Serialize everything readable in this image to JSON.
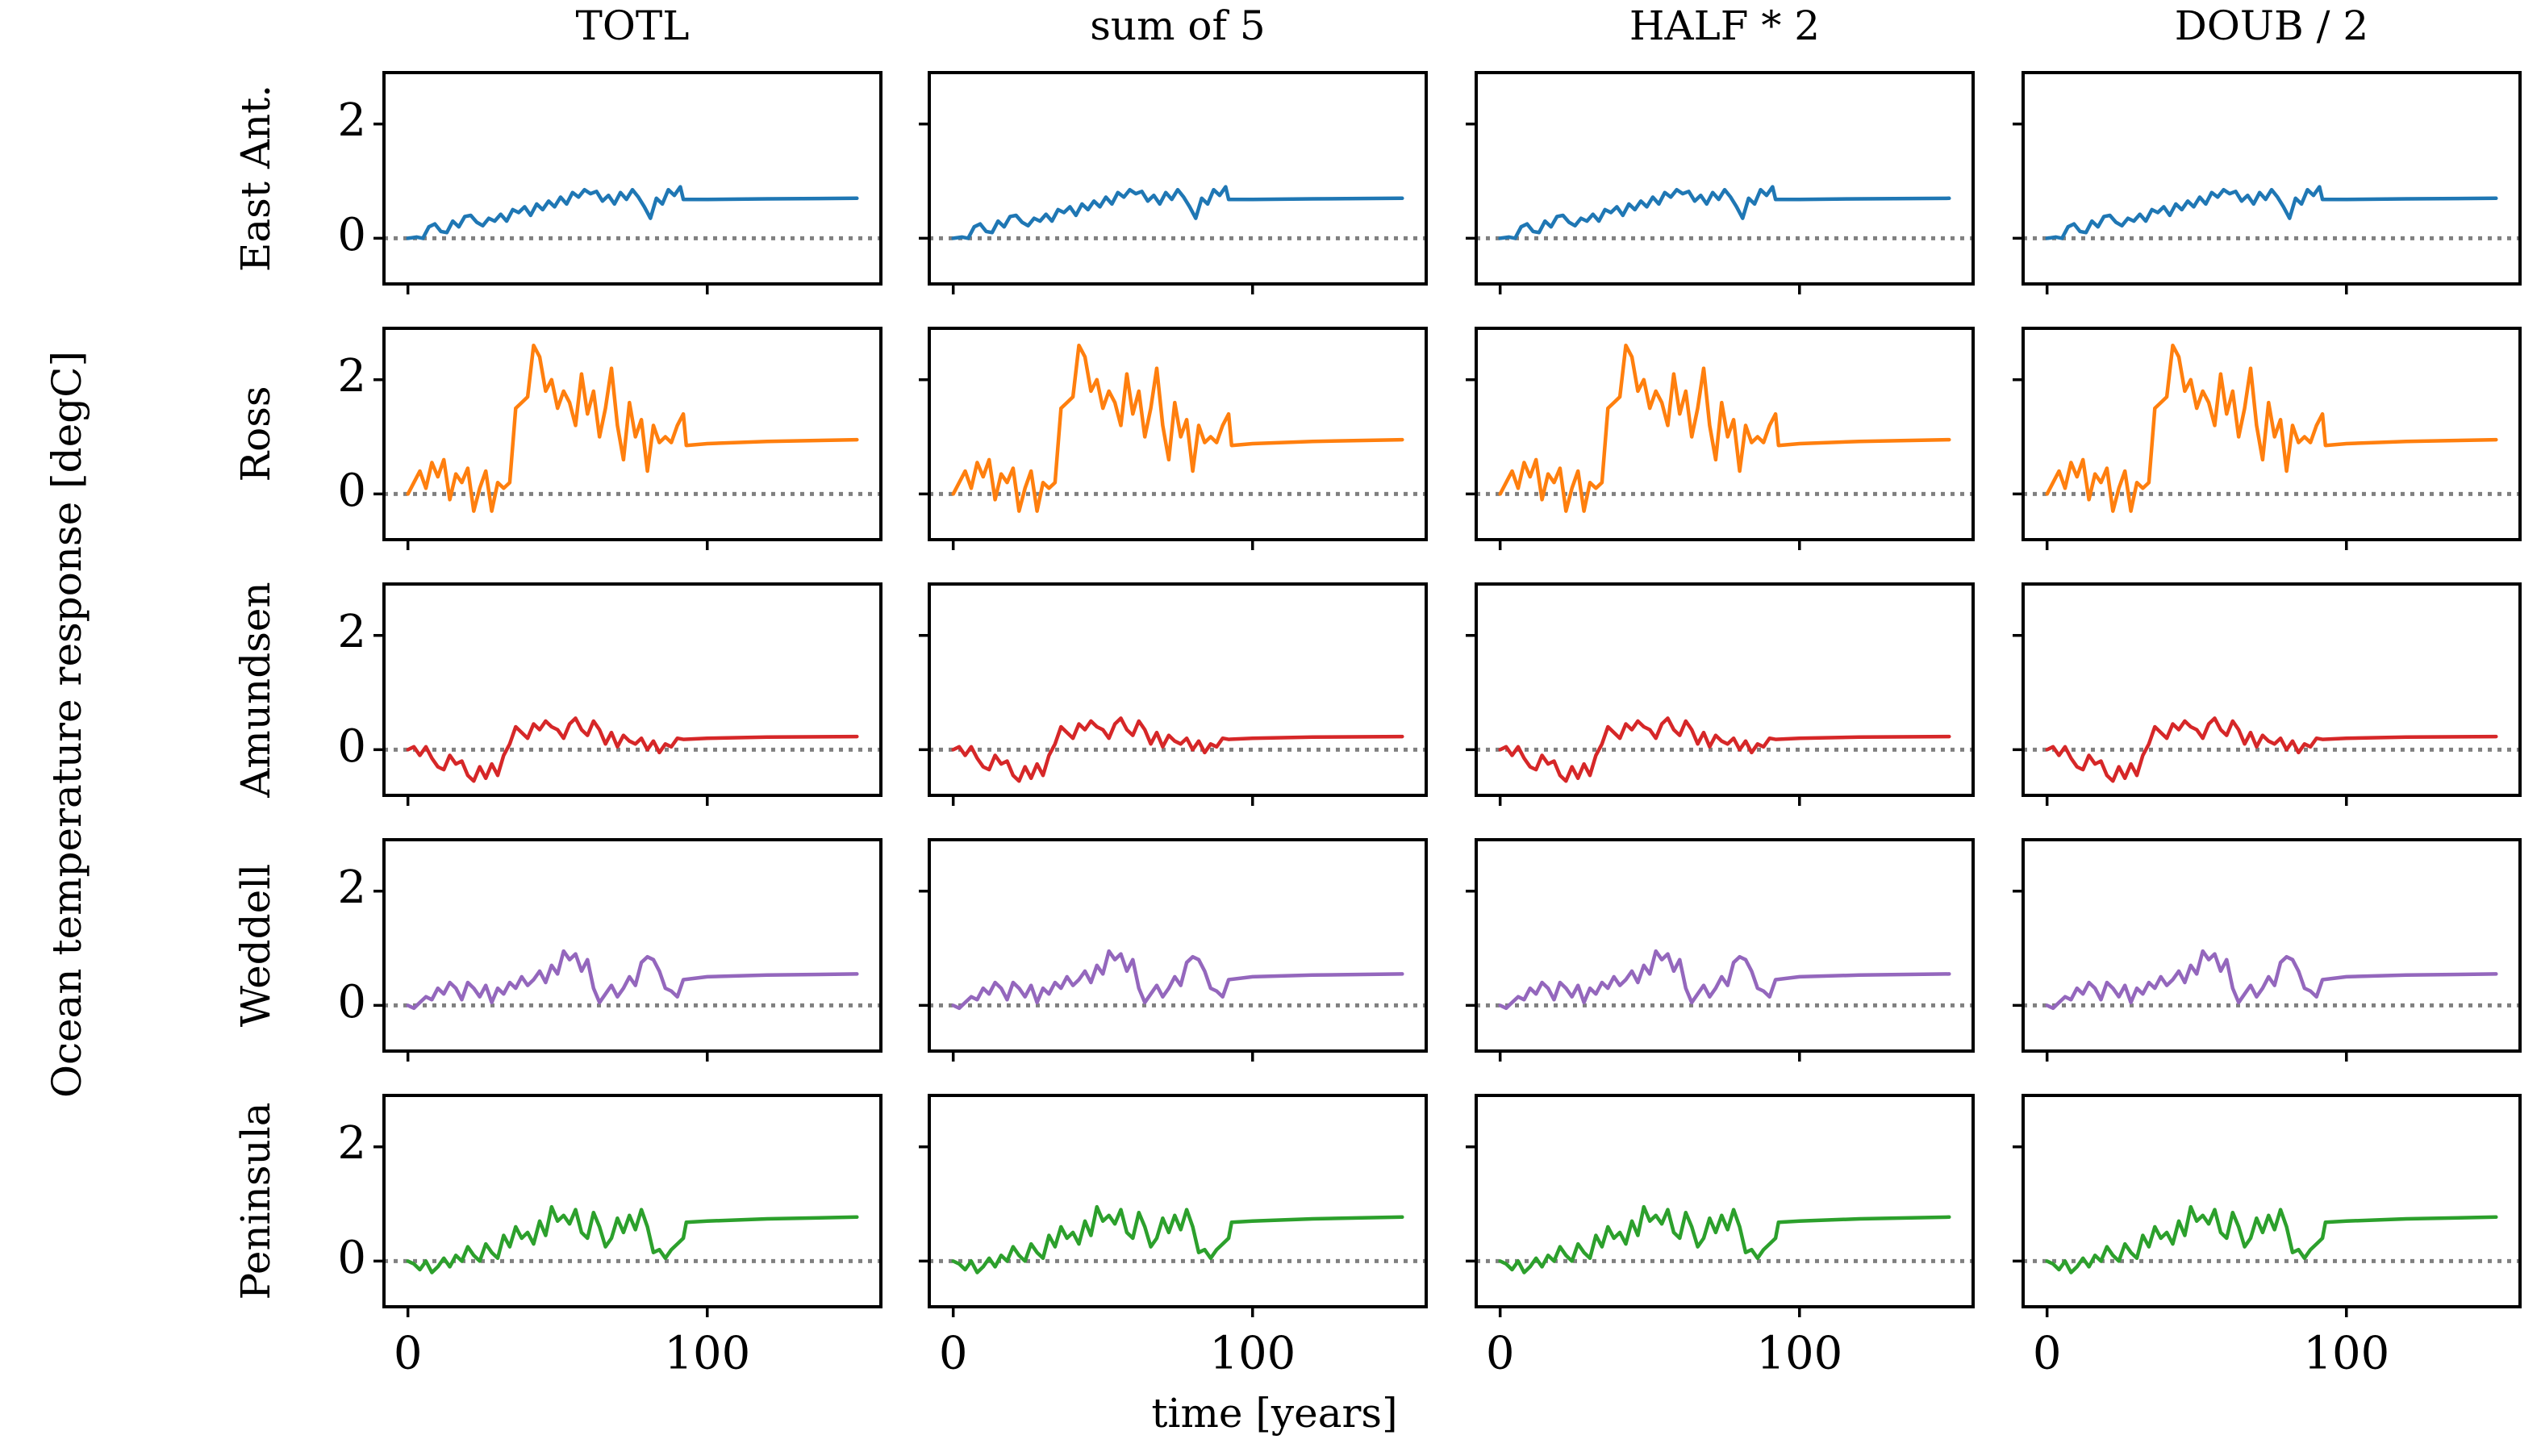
{
  "chart_data": {
    "type": "line",
    "ylabel": "Ocean temperature response [degC]",
    "xlabel": "time [years]",
    "columns": [
      "TOTL",
      "sum of 5",
      "HALF * 2",
      "DOUB / 2"
    ],
    "rows": [
      "East Ant.",
      "Ross",
      "Amundsen",
      "Weddell",
      "Peninsula"
    ],
    "colors": {
      "East Ant.": "#1f77b4",
      "Ross": "#ff7f0e",
      "Amundsen": "#d62728",
      "Weddell": "#9467bd",
      "Peninsula": "#2ca02c"
    },
    "reference_line": {
      "y": 0,
      "style": "dotted",
      "color": "#808080"
    },
    "xlim": [
      -8,
      158
    ],
    "ylim": [
      -0.8,
      2.9
    ],
    "xticks": [
      0,
      100
    ],
    "yticks": [
      0,
      2
    ],
    "note": "All four columns show identical series for each region.",
    "series": {
      "East Ant.": {
        "x": [
          0,
          3,
          5,
          7,
          9,
          11,
          13,
          15,
          17,
          19,
          21,
          23,
          25,
          27,
          29,
          31,
          33,
          35,
          37,
          39,
          41,
          43,
          45,
          47,
          49,
          51,
          53,
          55,
          57,
          59,
          61,
          63,
          65,
          67,
          69,
          71,
          73,
          75,
          77,
          79,
          81,
          83,
          85,
          87,
          89,
          91,
          92,
          100,
          120,
          150
        ],
        "y": [
          0.0,
          0.02,
          0.0,
          0.2,
          0.25,
          0.12,
          0.1,
          0.3,
          0.2,
          0.38,
          0.4,
          0.28,
          0.22,
          0.35,
          0.3,
          0.42,
          0.3,
          0.5,
          0.45,
          0.55,
          0.4,
          0.6,
          0.5,
          0.65,
          0.55,
          0.72,
          0.6,
          0.8,
          0.72,
          0.85,
          0.78,
          0.82,
          0.65,
          0.75,
          0.6,
          0.8,
          0.68,
          0.85,
          0.72,
          0.55,
          0.35,
          0.7,
          0.6,
          0.85,
          0.75,
          0.9,
          0.68,
          0.68,
          0.69,
          0.7
        ]
      },
      "Ross": {
        "x": [
          0,
          2,
          4,
          6,
          8,
          10,
          12,
          14,
          16,
          18,
          20,
          22,
          24,
          26,
          28,
          30,
          32,
          34,
          36,
          38,
          40,
          42,
          44,
          46,
          48,
          50,
          52,
          54,
          56,
          58,
          60,
          62,
          64,
          66,
          68,
          70,
          72,
          74,
          76,
          78,
          80,
          82,
          84,
          86,
          88,
          90,
          92,
          93,
          100,
          120,
          150
        ],
        "y": [
          0.0,
          0.2,
          0.4,
          0.1,
          0.55,
          0.3,
          0.6,
          -0.1,
          0.35,
          0.2,
          0.45,
          -0.3,
          0.1,
          0.4,
          -0.3,
          0.2,
          0.1,
          0.2,
          1.5,
          1.6,
          1.7,
          2.6,
          2.4,
          1.8,
          2.0,
          1.5,
          1.8,
          1.6,
          1.2,
          2.1,
          1.4,
          1.8,
          1.0,
          1.5,
          2.2,
          1.2,
          0.6,
          1.6,
          1.0,
          1.3,
          0.4,
          1.2,
          0.9,
          1.0,
          0.9,
          1.2,
          1.4,
          0.85,
          0.88,
          0.92,
          0.95
        ]
      },
      "Amundsen": {
        "x": [
          0,
          2,
          4,
          6,
          8,
          10,
          12,
          14,
          16,
          18,
          20,
          22,
          24,
          26,
          28,
          30,
          32,
          34,
          36,
          38,
          40,
          42,
          44,
          46,
          48,
          50,
          52,
          54,
          56,
          58,
          60,
          62,
          64,
          66,
          68,
          70,
          72,
          74,
          76,
          78,
          80,
          82,
          84,
          86,
          88,
          90,
          92,
          100,
          120,
          150
        ],
        "y": [
          0.0,
          0.05,
          -0.1,
          0.05,
          -0.15,
          -0.3,
          -0.35,
          -0.1,
          -0.25,
          -0.2,
          -0.45,
          -0.55,
          -0.3,
          -0.5,
          -0.25,
          -0.45,
          -0.1,
          0.1,
          0.4,
          0.3,
          0.2,
          0.45,
          0.35,
          0.5,
          0.4,
          0.35,
          0.2,
          0.45,
          0.55,
          0.35,
          0.25,
          0.5,
          0.35,
          0.1,
          0.3,
          0.05,
          0.25,
          0.15,
          0.1,
          0.2,
          0.0,
          0.15,
          -0.05,
          0.1,
          0.05,
          0.2,
          0.18,
          0.2,
          0.22,
          0.23
        ]
      },
      "Weddell": {
        "x": [
          0,
          2,
          4,
          6,
          8,
          10,
          12,
          14,
          16,
          18,
          20,
          22,
          24,
          26,
          28,
          30,
          32,
          34,
          36,
          38,
          40,
          42,
          44,
          46,
          48,
          50,
          52,
          54,
          56,
          58,
          60,
          62,
          64,
          66,
          68,
          70,
          72,
          74,
          76,
          78,
          80,
          82,
          84,
          86,
          88,
          90,
          92,
          100,
          120,
          150
        ],
        "y": [
          0.0,
          -0.05,
          0.05,
          0.15,
          0.1,
          0.3,
          0.2,
          0.4,
          0.3,
          0.1,
          0.4,
          0.3,
          0.15,
          0.35,
          0.05,
          0.3,
          0.2,
          0.4,
          0.3,
          0.5,
          0.35,
          0.45,
          0.6,
          0.4,
          0.7,
          0.55,
          0.95,
          0.8,
          0.9,
          0.6,
          0.8,
          0.3,
          0.05,
          0.2,
          0.35,
          0.15,
          0.3,
          0.5,
          0.35,
          0.75,
          0.85,
          0.8,
          0.6,
          0.3,
          0.25,
          0.15,
          0.45,
          0.5,
          0.53,
          0.55
        ]
      },
      "Peninsula": {
        "x": [
          0,
          2,
          4,
          6,
          8,
          10,
          12,
          14,
          16,
          18,
          20,
          22,
          24,
          26,
          28,
          30,
          32,
          34,
          36,
          38,
          40,
          42,
          44,
          46,
          48,
          50,
          52,
          54,
          56,
          58,
          60,
          62,
          64,
          66,
          68,
          70,
          72,
          74,
          76,
          78,
          80,
          82,
          84,
          86,
          88,
          90,
          92,
          93,
          100,
          120,
          150
        ],
        "y": [
          0.0,
          -0.05,
          -0.15,
          0.0,
          -0.2,
          -0.1,
          0.05,
          -0.1,
          0.1,
          0.0,
          0.25,
          0.1,
          0.0,
          0.3,
          0.15,
          0.05,
          0.45,
          0.25,
          0.6,
          0.4,
          0.5,
          0.3,
          0.7,
          0.45,
          0.95,
          0.7,
          0.8,
          0.65,
          0.9,
          0.5,
          0.4,
          0.85,
          0.6,
          0.25,
          0.4,
          0.75,
          0.5,
          0.8,
          0.55,
          0.9,
          0.6,
          0.15,
          0.2,
          0.05,
          0.2,
          0.3,
          0.4,
          0.68,
          0.7,
          0.74,
          0.77
        ]
      }
    }
  }
}
